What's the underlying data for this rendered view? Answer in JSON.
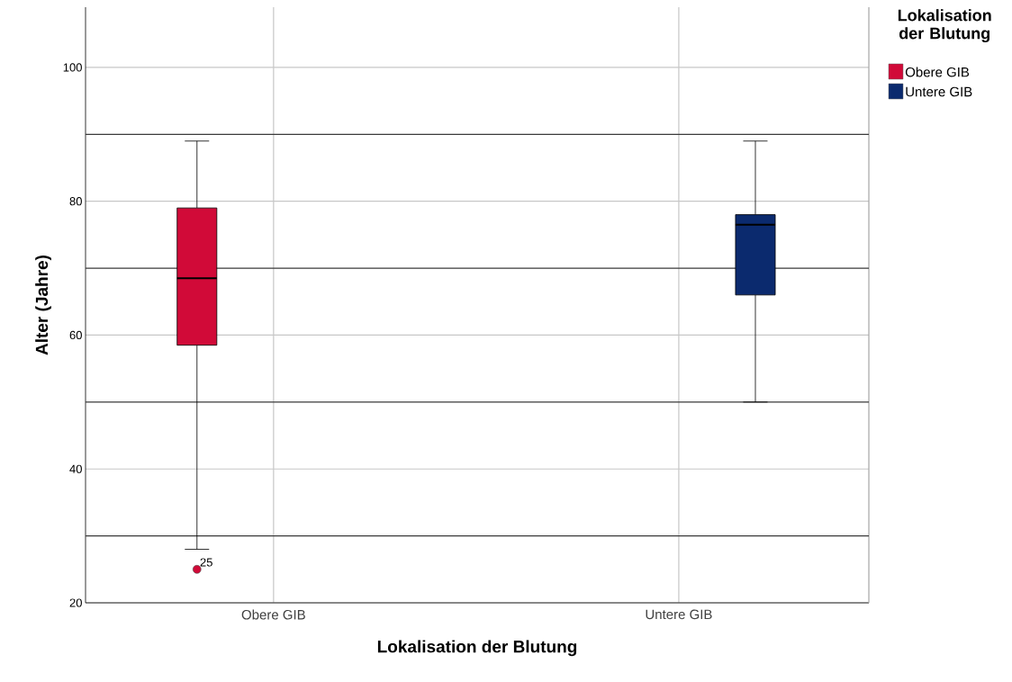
{
  "chart_data": {
    "type": "box",
    "xlabel": "Lokalisation der Blutung",
    "ylabel": "Alter (Jahre)",
    "legend_title": "Lokalisation der Blutung",
    "legend": "right",
    "categories": [
      "Obere GIB",
      "Untere GIB"
    ],
    "ylim": [
      20,
      109
    ],
    "yticks": [
      20,
      40,
      60,
      80,
      100
    ],
    "grid": true,
    "marker": "circle",
    "series": [
      {
        "name": "Obere GIB",
        "color": "#d10a38",
        "boxes": [
          {
            "low": 28,
            "q1": 58.5,
            "median": 68.5,
            "q3": 79,
            "high": 89,
            "outliers": [
              25
            ]
          },
          null
        ]
      },
      {
        "name": "Untere GIB",
        "color": "#0b2a6e",
        "boxes": [
          null,
          {
            "low": 50,
            "q1": 66,
            "median": 76.5,
            "q3": 78,
            "high": 89
          }
        ]
      }
    ],
    "ref_lines": [
      {
        "axis": "y",
        "value": 30,
        "color": "#3a3a3a"
      },
      {
        "axis": "y",
        "value": 50,
        "color": "#3a3a3a"
      },
      {
        "axis": "y",
        "value": 70,
        "color": "#3a3a3a"
      },
      {
        "axis": "y",
        "value": 90,
        "color": "#3a3a3a"
      }
    ],
    "annotations": [
      "25"
    ]
  }
}
